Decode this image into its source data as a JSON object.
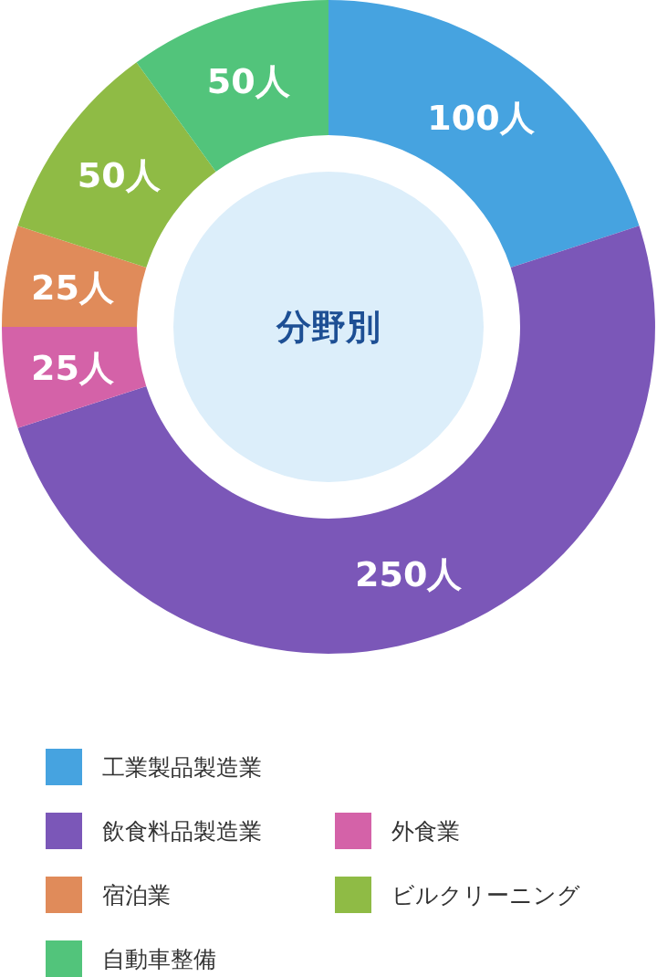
{
  "chart_data": {
    "type": "donut",
    "title": "分野別",
    "categories": [
      "工業製品製造業",
      "飲食料品製造業",
      "外食業",
      "宿泊業",
      "ビルクリーニング",
      "自動車整備"
    ],
    "values": [
      100,
      250,
      25,
      25,
      50,
      50
    ],
    "colors": [
      "#46a3e0",
      "#7b57b8",
      "#d462a8",
      "#e08b5a",
      "#8fbb45",
      "#52c47b"
    ],
    "value_labels": [
      "100人",
      "250人",
      "25人",
      "25人",
      "50人",
      "50人"
    ],
    "legend": "bottom"
  }
}
